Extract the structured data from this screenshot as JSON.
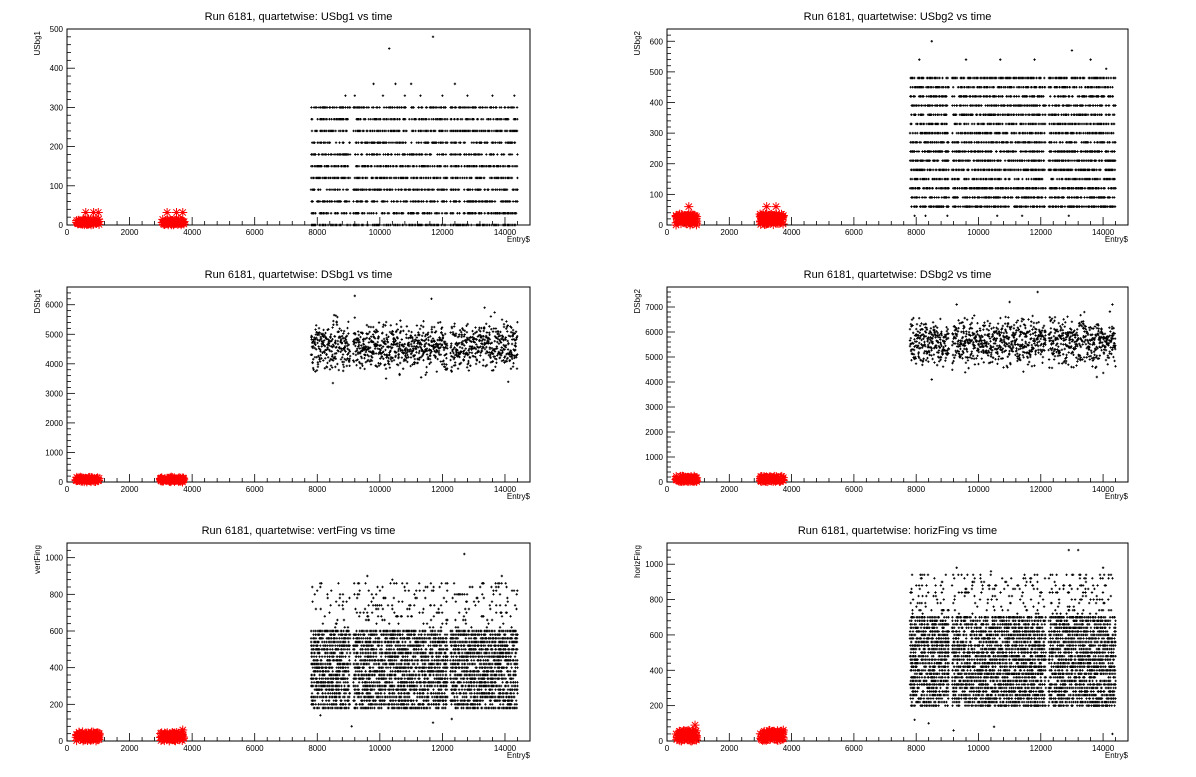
{
  "chart_data": [
    {
      "type": "scatter",
      "title": "Run 6181, quartetwise: USbg1 vs time",
      "xlabel": "Entry$",
      "ylabel": "USbg1",
      "xlim": [
        0,
        14800
      ],
      "ylim": [
        0,
        500
      ],
      "xticks": [
        0,
        2000,
        4000,
        6000,
        8000,
        10000,
        12000,
        14000
      ],
      "yticks": [
        0,
        100,
        200,
        300,
        400,
        500
      ],
      "grid": false,
      "colors": {
        "black": "#000000",
        "red": "#ff0000"
      },
      "series": [
        {
          "marker": "red-star",
          "color": "#ff0000",
          "x_ranges": [
            [
              300,
              1050
            ],
            [
              3050,
              3750
            ]
          ],
          "levels": [
            0,
            2,
            4,
            6,
            8,
            10
          ],
          "outliers": [
            [
              600,
              32
            ],
            [
              850,
              32
            ],
            [
              1000,
              32
            ],
            [
              3200,
              32
            ],
            [
              3500,
              32
            ],
            [
              3700,
              32
            ]
          ]
        },
        {
          "marker": "black-dot",
          "color": "#000000",
          "x_ranges": [
            [
              7800,
              9050
            ],
            [
              9150,
              12150
            ],
            [
              12250,
              14400
            ]
          ],
          "levels": [
            0,
            30,
            60,
            90,
            120,
            150,
            180,
            210,
            240,
            270,
            300
          ],
          "density": 0.5,
          "outliers": [
            [
              8900,
              330
            ],
            [
              9200,
              330
            ],
            [
              9800,
              360
            ],
            [
              10300,
              450
            ],
            [
              10500,
              360
            ],
            [
              10800,
              330
            ],
            [
              11000,
              360
            ],
            [
              11700,
              480
            ],
            [
              11300,
              330
            ],
            [
              12000,
              330
            ],
            [
              12400,
              360
            ],
            [
              13600,
              330
            ],
            [
              14300,
              330
            ],
            [
              10100,
              330
            ],
            [
              12800,
              330
            ]
          ]
        }
      ]
    },
    {
      "type": "scatter",
      "title": "Run 6181, quartetwise: USbg2 vs time",
      "xlabel": "Entry$",
      "ylabel": "USbg2",
      "xlim": [
        0,
        14800
      ],
      "ylim": [
        0,
        640
      ],
      "xticks": [
        0,
        2000,
        4000,
        6000,
        8000,
        10000,
        12000,
        14000
      ],
      "yticks": [
        0,
        100,
        200,
        300,
        400,
        500,
        600
      ],
      "grid": false,
      "series": [
        {
          "marker": "red-star",
          "color": "#ff0000",
          "x_ranges": [
            [
              300,
              950
            ],
            [
              3000,
              3750
            ]
          ],
          "levels": [
            0,
            5,
            10,
            15,
            20,
            25,
            30
          ],
          "outliers": [
            [
              700,
              60
            ],
            [
              3200,
              60
            ],
            [
              3500,
              60
            ]
          ]
        },
        {
          "marker": "black-dot",
          "color": "#000000",
          "x_ranges": [
            [
              7800,
              9050
            ],
            [
              9150,
              12150
            ],
            [
              12250,
              14400
            ]
          ],
          "levels": [
            60,
            90,
            120,
            150,
            180,
            210,
            240,
            270,
            300,
            330,
            360,
            390,
            420,
            450,
            480
          ],
          "density": 0.55,
          "outliers": [
            [
              8500,
              600
            ],
            [
              13000,
              570
            ],
            [
              7950,
              30
            ],
            [
              8300,
              30
            ],
            [
              9000,
              30
            ],
            [
              10600,
              30
            ],
            [
              11400,
              30
            ],
            [
              12900,
              30
            ],
            [
              8100,
              540
            ],
            [
              9600,
              540
            ],
            [
              10700,
              540
            ],
            [
              11800,
              540
            ],
            [
              13600,
              540
            ],
            [
              14100,
              510
            ]
          ]
        }
      ]
    },
    {
      "type": "scatter",
      "title": "Run 6181, quartetwise: DSbg1 vs time",
      "xlabel": "Entry$",
      "ylabel": "DSbg1",
      "xlim": [
        0,
        14800
      ],
      "ylim": [
        0,
        6600
      ],
      "xticks": [
        0,
        2000,
        4000,
        6000,
        8000,
        10000,
        12000,
        14000
      ],
      "yticks": [
        0,
        1000,
        2000,
        3000,
        4000,
        5000,
        6000
      ],
      "grid": false,
      "series": [
        {
          "marker": "red-star",
          "color": "#ff0000",
          "x_ranges": [
            [
              300,
              1050
            ],
            [
              3000,
              3750
            ]
          ],
          "levels": [
            0,
            20,
            40,
            60,
            80,
            100
          ],
          "outliers": []
        },
        {
          "marker": "black-dot",
          "color": "#000000",
          "x_ranges": [
            [
              7800,
              9050
            ],
            [
              9150,
              12150
            ],
            [
              12250,
              14400
            ]
          ],
          "cloud": {
            "center": 4600,
            "spread": 380
          },
          "outliers": [
            [
              9200,
              6300
            ],
            [
              11650,
              6200
            ],
            [
              13350,
              5900
            ],
            [
              8500,
              3350
            ],
            [
              10200,
              3500
            ]
          ]
        }
      ]
    },
    {
      "type": "scatter",
      "title": "Run 6181, quartetwise: DSbg2 vs time",
      "xlabel": "Entry$",
      "ylabel": "DSbg2",
      "xlim": [
        0,
        14800
      ],
      "ylim": [
        0,
        7800
      ],
      "xticks": [
        0,
        2000,
        4000,
        6000,
        8000,
        10000,
        12000,
        14000
      ],
      "yticks": [
        0,
        1000,
        2000,
        3000,
        4000,
        5000,
        6000,
        7000
      ],
      "grid": false,
      "series": [
        {
          "marker": "red-star",
          "color": "#ff0000",
          "x_ranges": [
            [
              300,
              950
            ],
            [
              3000,
              3750
            ]
          ],
          "levels": [
            0,
            30,
            60,
            90,
            120,
            150
          ],
          "outliers": []
        },
        {
          "marker": "black-dot",
          "color": "#000000",
          "x_ranges": [
            [
              7800,
              9050
            ],
            [
              9150,
              12150
            ],
            [
              12250,
              14400
            ]
          ],
          "cloud": {
            "center": 5600,
            "spread": 450
          },
          "outliers": [
            [
              11900,
              7600
            ],
            [
              9300,
              7100
            ],
            [
              14300,
              7100
            ],
            [
              11000,
              7200
            ],
            [
              8500,
              4100
            ],
            [
              13800,
              4200
            ]
          ]
        }
      ]
    },
    {
      "type": "scatter",
      "title": "Run 6181, quartetwise: vertFing vs time",
      "xlabel": "Entry$",
      "ylabel": "vertFing",
      "xlim": [
        0,
        14800
      ],
      "ylim": [
        0,
        1080
      ],
      "xticks": [
        0,
        2000,
        4000,
        6000,
        8000,
        10000,
        12000,
        14000
      ],
      "yticks": [
        0,
        200,
        400,
        600,
        800,
        1000
      ],
      "grid": false,
      "series": [
        {
          "marker": "red-star",
          "color": "#ff0000",
          "x_ranges": [
            [
              300,
              1050
            ],
            [
              3000,
              3750
            ]
          ],
          "levels": [
            0,
            10,
            20,
            30,
            40
          ],
          "outliers": [
            [
              3700,
              60
            ]
          ]
        },
        {
          "marker": "black-dot",
          "color": "#000000",
          "x_ranges": [
            [
              7800,
              9050
            ],
            [
              9150,
              12150
            ],
            [
              12250,
              14400
            ]
          ],
          "levels": [
            180,
            200,
            220,
            240,
            260,
            280,
            300,
            320,
            340,
            360,
            380,
            400,
            420,
            440,
            460,
            480,
            500,
            520,
            540,
            560,
            580,
            600
          ],
          "density": 0.45,
          "sparse_levels": [
            620,
            640,
            660,
            680,
            700,
            720,
            740,
            760,
            780,
            800,
            820,
            840,
            860
          ],
          "sparse_density": 0.06,
          "outliers": [
            [
              12700,
              1020
            ],
            [
              9600,
              900
            ],
            [
              13900,
              900
            ],
            [
              10400,
              880
            ],
            [
              13700,
              860
            ],
            [
              8100,
              140
            ],
            [
              9100,
              80
            ],
            [
              11700,
              100
            ],
            [
              12300,
              120
            ]
          ]
        }
      ]
    },
    {
      "type": "scatter",
      "title": "Run 6181, quartetwise: horizFing vs time",
      "xlabel": "Entry$",
      "ylabel": "horizFing",
      "xlim": [
        0,
        14800
      ],
      "ylim": [
        0,
        1120
      ],
      "xticks": [
        0,
        2000,
        4000,
        6000,
        8000,
        10000,
        12000,
        14000
      ],
      "yticks": [
        0,
        200,
        400,
        600,
        800,
        1000
      ],
      "grid": false,
      "series": [
        {
          "marker": "red-star",
          "color": "#ff0000",
          "x_ranges": [
            [
              300,
              950
            ],
            [
              3000,
              3750
            ]
          ],
          "levels": [
            0,
            10,
            20,
            30,
            40,
            50
          ],
          "outliers": [
            [
              700,
              60
            ],
            [
              900,
              90
            ],
            [
              3300,
              60
            ]
          ]
        },
        {
          "marker": "black-dot",
          "color": "#000000",
          "x_ranges": [
            [
              7800,
              9050
            ],
            [
              9150,
              12150
            ],
            [
              12250,
              14400
            ]
          ],
          "levels": [
            200,
            220,
            240,
            260,
            280,
            300,
            320,
            340,
            360,
            380,
            400,
            420,
            440,
            460,
            480,
            500,
            520,
            540,
            560,
            580,
            600,
            620,
            640,
            660,
            680,
            700
          ],
          "density": 0.45,
          "sparse_levels": [
            720,
            740,
            760,
            780,
            800,
            820,
            840,
            860,
            880,
            900,
            920,
            940
          ],
          "sparse_density": 0.07,
          "outliers": [
            [
              12900,
              1080
            ],
            [
              13200,
              1080
            ],
            [
              9300,
              980
            ],
            [
              14000,
              980
            ],
            [
              10400,
              960
            ],
            [
              7950,
              120
            ],
            [
              8400,
              100
            ],
            [
              9200,
              60
            ],
            [
              10500,
              80
            ],
            [
              14300,
              40
            ]
          ]
        }
      ]
    }
  ]
}
